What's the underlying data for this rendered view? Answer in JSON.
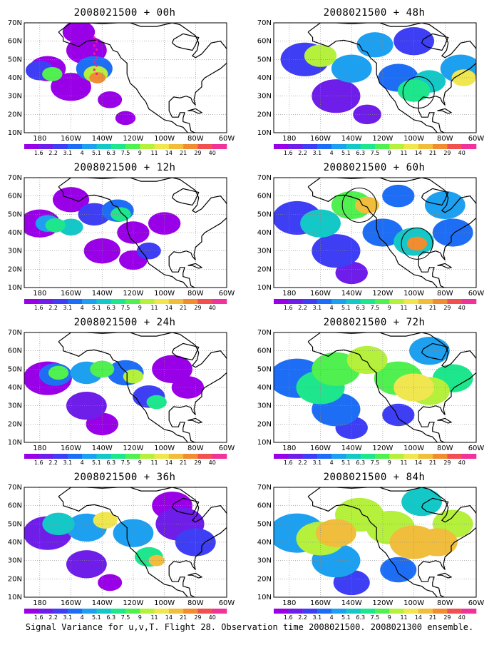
{
  "figure": {
    "caption": "Signal Variance for u,v,T. Flight 28. Observation time 2008021500. 2008021300 ensemble."
  },
  "panels": [
    {
      "title": "2008021500 + 00h",
      "column": 0,
      "row": 0
    },
    {
      "title": "2008021500 + 12h",
      "column": 0,
      "row": 1
    },
    {
      "title": "2008021500 + 24h",
      "column": 0,
      "row": 2
    },
    {
      "title": "2008021500 + 36h",
      "column": 0,
      "row": 3
    },
    {
      "title": "2008021500 + 48h",
      "column": 1,
      "row": 0
    },
    {
      "title": "2008021500 + 60h",
      "column": 1,
      "row": 1
    },
    {
      "title": "2008021500 + 72h",
      "column": 1,
      "row": 2
    },
    {
      "title": "2008021500 + 84h",
      "column": 1,
      "row": 3
    }
  ],
  "map": {
    "lon_range": [
      -190,
      -60
    ],
    "lat_range": [
      10,
      70
    ],
    "x_ticks": [
      "180",
      "160W",
      "140W",
      "120W",
      "100W",
      "80W",
      "60W"
    ],
    "y_ticks": [
      "10N",
      "20N",
      "30N",
      "40N",
      "50N",
      "60N",
      "70N"
    ],
    "grid": "dotted"
  },
  "colorbar": {
    "labels": [
      "1.6",
      "2.2",
      "3.1",
      "4",
      "5.1",
      "6.3",
      "7.5",
      "9",
      "11",
      "14",
      "21",
      "29",
      "40"
    ],
    "colors": [
      "#9a00e8",
      "#6e1ee8",
      "#3e3ef5",
      "#1e6ef5",
      "#1ea0f0",
      "#14c8c8",
      "#1ee68c",
      "#50f050",
      "#b4f03c",
      "#f0e650",
      "#f0be3c",
      "#f08c32",
      "#f05050",
      "#f0329b"
    ]
  },
  "colors": {
    "land_line": "#000000",
    "background": "#ffffff",
    "marker_dots": "#ff1a8c",
    "circle_marker": "#000000"
  }
}
